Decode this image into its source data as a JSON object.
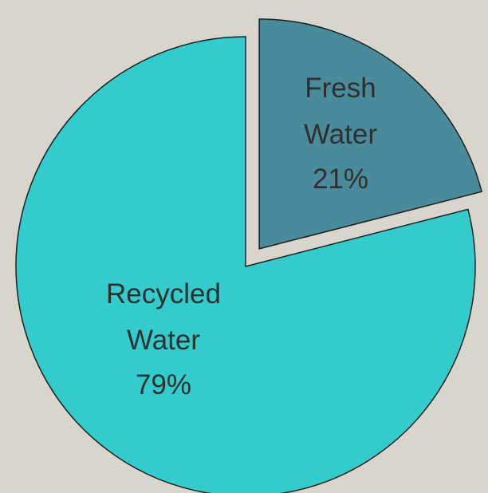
{
  "chart_data": {
    "type": "pie",
    "title": "",
    "slices": [
      {
        "label_line1": "Fresh",
        "label_line2": "Water",
        "percent_label": "21%",
        "value": 21,
        "color": "#4a8b9b",
        "exploded": true
      },
      {
        "label_line1": "Recycled",
        "label_line2": "Water",
        "percent_label": "79%",
        "value": 79,
        "color": "#33cccc",
        "exploded": false
      }
    ],
    "background": "#d7d5cc",
    "stroke": "#1f1f1f"
  }
}
